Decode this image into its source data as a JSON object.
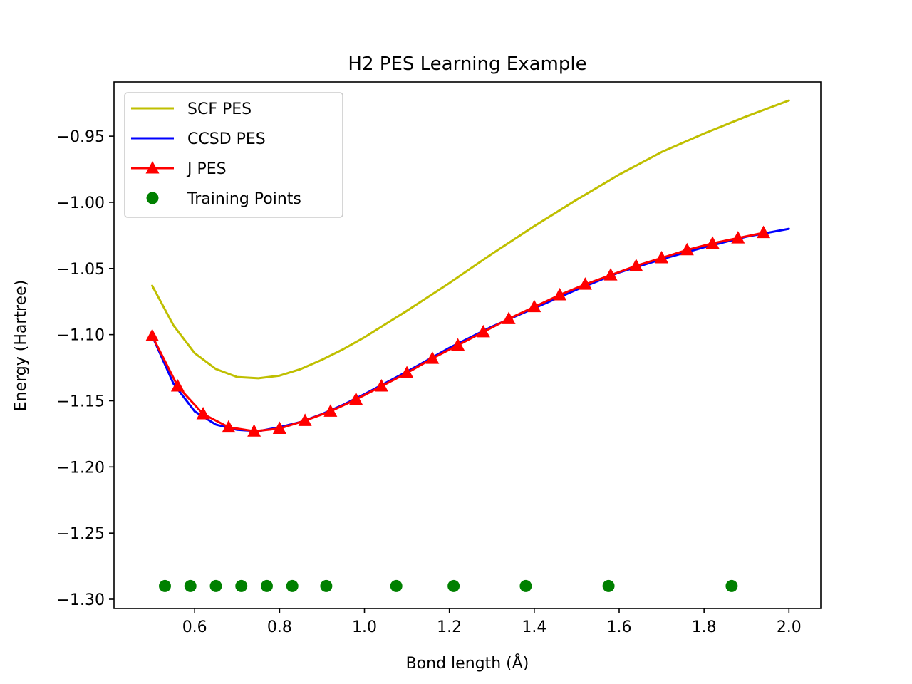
{
  "chart_data": {
    "type": "line",
    "title": "H2 PES Learning Example",
    "xlabel": "Bond length (Å)",
    "ylabel": "Energy (Hartree)",
    "xlim": [
      0.41,
      2.075
    ],
    "ylim": [
      -1.307,
      -0.909
    ],
    "xticks": [
      0.6,
      0.8,
      1.0,
      1.2,
      1.4,
      1.6,
      1.8,
      2.0
    ],
    "xtick_labels": [
      "0.6",
      "0.8",
      "1.0",
      "1.2",
      "1.4",
      "1.6",
      "1.8",
      "2.0"
    ],
    "yticks": [
      -0.95,
      -1.0,
      -1.05,
      -1.1,
      -1.15,
      -1.2,
      -1.25,
      -1.3
    ],
    "ytick_labels": [
      "−0.95",
      "−1.00",
      "−1.05",
      "−1.10",
      "−1.15",
      "−1.20",
      "−1.25",
      "−1.30"
    ],
    "grid": false,
    "legend_position": "upper-left",
    "series": [
      {
        "name": "SCF PES",
        "color": "#bfbf00",
        "style": "line",
        "x": [
          0.5,
          0.55,
          0.6,
          0.65,
          0.7,
          0.75,
          0.8,
          0.85,
          0.9,
          0.95,
          1.0,
          1.1,
          1.2,
          1.3,
          1.4,
          1.5,
          1.6,
          1.7,
          1.8,
          1.9,
          2.0
        ],
        "y": [
          -1.063,
          -1.093,
          -1.114,
          -1.126,
          -1.132,
          -1.133,
          -1.131,
          -1.126,
          -1.119,
          -1.111,
          -1.102,
          -1.082,
          -1.061,
          -1.039,
          -1.018,
          -0.998,
          -0.979,
          -0.962,
          -0.948,
          -0.935,
          -0.923
        ]
      },
      {
        "name": "CCSD PES",
        "color": "#0000ff",
        "style": "line",
        "x": [
          0.5,
          0.55,
          0.6,
          0.65,
          0.7,
          0.75,
          0.8,
          0.85,
          0.9,
          0.95,
          1.0,
          1.1,
          1.2,
          1.3,
          1.4,
          1.5,
          1.6,
          1.7,
          1.8,
          1.9,
          2.0
        ],
        "y": [
          -1.101,
          -1.137,
          -1.158,
          -1.168,
          -1.172,
          -1.173,
          -1.17,
          -1.166,
          -1.16,
          -1.153,
          -1.145,
          -1.128,
          -1.11,
          -1.094,
          -1.08,
          -1.066,
          -1.053,
          -1.043,
          -1.034,
          -1.026,
          -1.02
        ]
      },
      {
        "name": "J PES",
        "color": "#ff0000",
        "style": "line-marker",
        "marker": "triangle",
        "x": [
          0.5,
          0.56,
          0.62,
          0.68,
          0.74,
          0.8,
          0.86,
          0.92,
          0.98,
          1.04,
          1.1,
          1.16,
          1.22,
          1.28,
          1.34,
          1.4,
          1.46,
          1.52,
          1.58,
          1.64,
          1.7,
          1.76,
          1.82,
          1.88,
          1.94
        ],
        "y": [
          -1.101,
          -1.139,
          -1.16,
          -1.17,
          -1.173,
          -1.171,
          -1.165,
          -1.158,
          -1.149,
          -1.139,
          -1.129,
          -1.118,
          -1.108,
          -1.098,
          -1.088,
          -1.079,
          -1.07,
          -1.062,
          -1.055,
          -1.048,
          -1.042,
          -1.036,
          -1.031,
          -1.027,
          -1.023
        ]
      },
      {
        "name": "Training Points",
        "color": "#008000",
        "style": "marker",
        "marker": "circle",
        "x": [
          0.53,
          0.59,
          0.65,
          0.71,
          0.77,
          0.83,
          0.91,
          1.075,
          1.21,
          1.38,
          1.575,
          1.865
        ],
        "y": [
          -1.29,
          -1.29,
          -1.29,
          -1.29,
          -1.29,
          -1.29,
          -1.29,
          -1.29,
          -1.29,
          -1.29,
          -1.29,
          -1.29
        ]
      }
    ]
  }
}
